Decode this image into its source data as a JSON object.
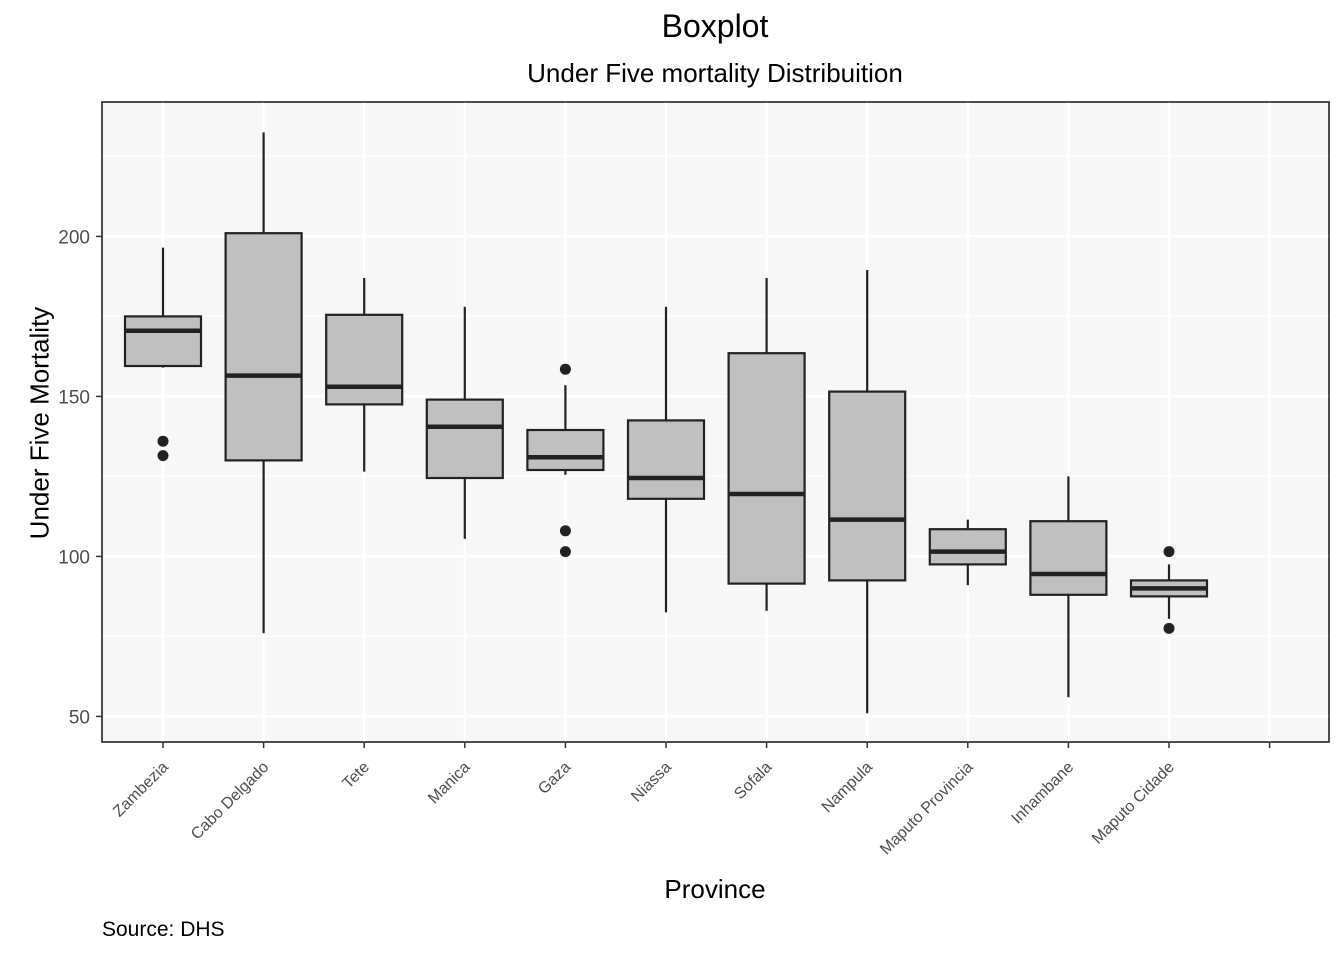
{
  "chart_data": {
    "type": "boxplot",
    "title": "Boxplot",
    "subtitle": "Under Five mortality Distribuition",
    "xlabel": "Province",
    "ylabel": "Under Five Mortality",
    "caption": "Source: DHS",
    "ylim": [
      42,
      242
    ],
    "yticks": [
      50,
      100,
      150,
      200
    ],
    "grid": true,
    "categories": [
      "Zambezia",
      "Cabo Delgado",
      "Tete",
      "Manica",
      "Gaza",
      "Niassa",
      "Sofala",
      "Nampula",
      "Maputo Provincia",
      "Inhambane",
      "Maputo Cidade",
      ""
    ],
    "boxes": [
      {
        "name": "Zambezia",
        "whisker_low": 159,
        "q1": 159.5,
        "median": 170.5,
        "q3": 175,
        "whisker_high": 196.5,
        "outliers": [
          136,
          131.5
        ]
      },
      {
        "name": "Cabo Delgado",
        "whisker_low": 76,
        "q1": 130,
        "median": 156.5,
        "q3": 201,
        "whisker_high": 232.5,
        "outliers": []
      },
      {
        "name": "Tete",
        "whisker_low": 126.5,
        "q1": 147.5,
        "median": 153,
        "q3": 175.5,
        "whisker_high": 187,
        "outliers": []
      },
      {
        "name": "Manica",
        "whisker_low": 105.5,
        "q1": 124.5,
        "median": 140.5,
        "q3": 149,
        "whisker_high": 178,
        "outliers": []
      },
      {
        "name": "Gaza",
        "whisker_low": 125.5,
        "q1": 127,
        "median": 131,
        "q3": 139.5,
        "whisker_high": 153.5,
        "outliers": [
          158.5,
          108,
          101.5
        ]
      },
      {
        "name": "Niassa",
        "whisker_low": 82.5,
        "q1": 118,
        "median": 124.5,
        "q3": 142.5,
        "whisker_high": 178,
        "outliers": []
      },
      {
        "name": "Sofala",
        "whisker_low": 83,
        "q1": 91.5,
        "median": 119.5,
        "q3": 163.5,
        "whisker_high": 187,
        "outliers": []
      },
      {
        "name": "Nampula",
        "whisker_low": 51,
        "q1": 92.5,
        "median": 111.5,
        "q3": 151.5,
        "whisker_high": 189.5,
        "outliers": []
      },
      {
        "name": "Maputo Provincia",
        "whisker_low": 91,
        "q1": 97.5,
        "median": 101.5,
        "q3": 108.5,
        "whisker_high": 111.5,
        "outliers": []
      },
      {
        "name": "Inhambane",
        "whisker_low": 56,
        "q1": 88,
        "median": 94.5,
        "q3": 111,
        "whisker_high": 125,
        "outliers": []
      },
      {
        "name": "Maputo Cidade",
        "whisker_low": 80.5,
        "q1": 87.5,
        "median": 90,
        "q3": 92.5,
        "whisker_high": 97.5,
        "outliers": [
          101.5,
          77.5
        ]
      }
    ],
    "colors": {
      "panel": "#f7f7f7",
      "box_fill": "#c0c0c0",
      "box_line": "#222222",
      "grid": "#ffffff",
      "axis_text": "#4d4d4d"
    }
  }
}
